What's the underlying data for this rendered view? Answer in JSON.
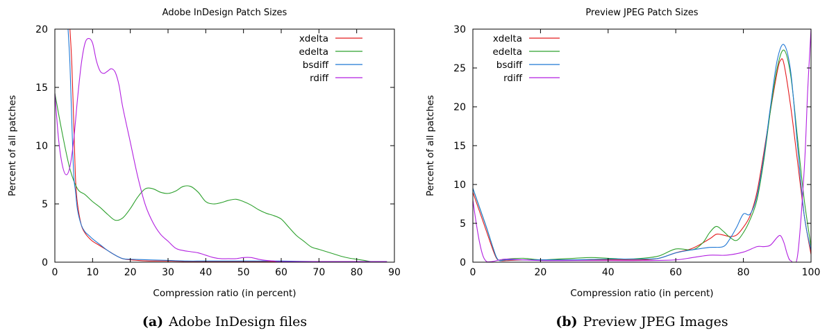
{
  "chart_data": [
    {
      "type": "line",
      "title": "Adobe InDesign Patch Sizes",
      "xlabel": "Compression ratio (in percent)",
      "ylabel": "Percent of all patches",
      "xlim": [
        0,
        90
      ],
      "ylim": [
        0,
        20
      ],
      "xticks": [
        0,
        10,
        20,
        30,
        40,
        50,
        60,
        70,
        80,
        90
      ],
      "yticks": [
        0,
        5,
        10,
        15,
        20
      ],
      "grid": false,
      "legend_position": "top-right",
      "caption_label": "(a)",
      "caption_text": "Adobe InDesign files",
      "series": [
        {
          "name": "xdelta",
          "color": "#e41a1c",
          "x": [
            4,
            4.5,
            5,
            5.5,
            6,
            7,
            8,
            9,
            10,
            12,
            14,
            16,
            18,
            20,
            22,
            25,
            30,
            35,
            40,
            50,
            60,
            70,
            80,
            88
          ],
          "y": [
            20,
            17,
            12,
            7,
            5,
            3.2,
            2.5,
            2.1,
            1.8,
            1.4,
            1.0,
            0.6,
            0.3,
            0.2,
            0.15,
            0.1,
            0.1,
            0.05,
            0.05,
            0.05,
            0.05,
            0.05,
            0.05,
            0.05
          ]
        },
        {
          "name": "edelta",
          "color": "#2ca02c",
          "x": [
            0,
            2,
            4,
            6,
            8,
            10,
            12,
            14,
            16,
            18,
            20,
            22,
            24,
            26,
            28,
            30,
            32,
            34,
            36,
            38,
            40,
            42,
            44,
            46,
            48,
            50,
            52,
            54,
            56,
            58,
            60,
            62,
            64,
            66,
            68,
            70,
            72,
            74,
            76,
            78,
            80,
            82,
            84,
            86,
            88
          ],
          "y": [
            14.5,
            11.0,
            8.0,
            6.3,
            5.8,
            5.2,
            4.7,
            4.1,
            3.6,
            3.8,
            4.6,
            5.6,
            6.3,
            6.3,
            6.0,
            5.9,
            6.1,
            6.5,
            6.5,
            6.0,
            5.2,
            5.0,
            5.1,
            5.3,
            5.4,
            5.2,
            4.9,
            4.5,
            4.2,
            4.0,
            3.7,
            3.0,
            2.3,
            1.8,
            1.3,
            1.1,
            0.9,
            0.7,
            0.5,
            0.35,
            0.25,
            0.15,
            0.05,
            0.05,
            0.05
          ]
        },
        {
          "name": "bsdiff",
          "color": "#1f77d4",
          "x": [
            3.5,
            4,
            4.5,
            5,
            5.5,
            6,
            7,
            8,
            9,
            10,
            12,
            14,
            16,
            18,
            20,
            25,
            30,
            35,
            40,
            50,
            60,
            70,
            80,
            88
          ],
          "y": [
            20,
            17,
            12,
            7.5,
            6.0,
            4.5,
            3.2,
            2.6,
            2.3,
            2.0,
            1.5,
            1.0,
            0.6,
            0.3,
            0.25,
            0.2,
            0.15,
            0.1,
            0.1,
            0.1,
            0.1,
            0.05,
            0.05,
            0.05
          ]
        },
        {
          "name": "rdiff",
          "color": "#b21fe0",
          "x": [
            0,
            1,
            2,
            3,
            4,
            5,
            6,
            7,
            8,
            9,
            10,
            11,
            12,
            13,
            14,
            15,
            16,
            17,
            18,
            20,
            22,
            24,
            26,
            28,
            30,
            32,
            34,
            36,
            38,
            40,
            42,
            44,
            46,
            48,
            50,
            52,
            54,
            56,
            58,
            60,
            70,
            80,
            88
          ],
          "y": [
            14.5,
            10.5,
            8.3,
            7.5,
            8.2,
            10.5,
            14.0,
            17.0,
            18.8,
            19.2,
            18.8,
            17.3,
            16.4,
            16.2,
            16.4,
            16.6,
            16.3,
            15.2,
            13.3,
            10.3,
            7.3,
            4.9,
            3.4,
            2.4,
            1.8,
            1.2,
            1.0,
            0.9,
            0.8,
            0.6,
            0.4,
            0.3,
            0.3,
            0.3,
            0.4,
            0.4,
            0.25,
            0.15,
            0.1,
            0.05,
            0.05,
            0.05,
            0.05
          ]
        }
      ]
    },
    {
      "type": "line",
      "title": "Preview JPEG Patch Sizes",
      "xlabel": "Compression ratio (in percent)",
      "ylabel": "Percent of all patches",
      "xlim": [
        0,
        100
      ],
      "ylim": [
        0,
        30
      ],
      "xticks": [
        0,
        20,
        40,
        60,
        80,
        100
      ],
      "yticks": [
        0,
        5,
        10,
        15,
        20,
        25,
        30
      ],
      "grid": false,
      "legend_position": "top-left",
      "caption_label": "(b)",
      "caption_text": "Preview JPEG Images",
      "series": [
        {
          "name": "xdelta",
          "color": "#e41a1c",
          "x": [
            0,
            2,
            4,
            6,
            7,
            8,
            10,
            15,
            20,
            30,
            40,
            50,
            55,
            60,
            65,
            70,
            72,
            74,
            76,
            78,
            80,
            82,
            84,
            86,
            88,
            90,
            91,
            92,
            94,
            96,
            98,
            100
          ],
          "y": [
            9.0,
            6.5,
            4.0,
            1.5,
            0.5,
            0.2,
            0.2,
            0.3,
            0.3,
            0.3,
            0.3,
            0.3,
            0.5,
            1.2,
            1.8,
            3.0,
            3.6,
            3.5,
            3.3,
            3.5,
            4.5,
            6.0,
            9.0,
            14.0,
            19.5,
            24.5,
            26.0,
            25.5,
            20.0,
            13.0,
            6.0,
            1.0
          ]
        },
        {
          "name": "edelta",
          "color": "#2ca02c",
          "x": [
            0,
            2,
            4,
            6,
            7,
            8,
            10,
            15,
            20,
            25,
            30,
            35,
            40,
            45,
            50,
            55,
            60,
            65,
            68,
            70,
            72,
            74,
            76,
            78,
            80,
            82,
            84,
            86,
            88,
            90,
            92,
            94,
            96,
            98,
            100
          ],
          "y": [
            9.5,
            7.0,
            4.5,
            1.8,
            0.6,
            0.2,
            0.4,
            0.5,
            0.3,
            0.4,
            0.5,
            0.6,
            0.5,
            0.4,
            0.5,
            0.8,
            1.7,
            1.6,
            2.5,
            3.8,
            4.6,
            4.0,
            3.2,
            2.8,
            3.8,
            5.5,
            8.0,
            13.0,
            19.5,
            25.0,
            27.3,
            24.0,
            16.0,
            8.0,
            2.0
          ]
        },
        {
          "name": "bsdiff",
          "color": "#1f77d4",
          "x": [
            0,
            2,
            4,
            6,
            7,
            8,
            10,
            15,
            20,
            30,
            40,
            50,
            55,
            60,
            65,
            70,
            74,
            76,
            78,
            80,
            82,
            84,
            86,
            88,
            90,
            92,
            94,
            96,
            98,
            100
          ],
          "y": [
            9.5,
            7.0,
            4.5,
            1.8,
            0.6,
            0.2,
            0.3,
            0.3,
            0.3,
            0.3,
            0.4,
            0.4,
            0.5,
            1.2,
            1.6,
            1.9,
            2.0,
            3.0,
            4.5,
            6.2,
            6.2,
            8.5,
            13.5,
            20.0,
            26.0,
            28.0,
            24.5,
            15.0,
            6.0,
            1.5
          ]
        },
        {
          "name": "rdiff",
          "color": "#b21fe0",
          "x": [
            0,
            1,
            2,
            3,
            4,
            5,
            6,
            8,
            10,
            15,
            20,
            30,
            40,
            50,
            60,
            65,
            70,
            75,
            80,
            84,
            86,
            88,
            90,
            91,
            92,
            93,
            94,
            96,
            98,
            99,
            100
          ],
          "y": [
            8.0,
            5.0,
            2.5,
            0.8,
            0.1,
            0.05,
            0.1,
            0.3,
            0.4,
            0.3,
            0.2,
            0.2,
            0.2,
            0.2,
            0.3,
            0.6,
            0.9,
            0.9,
            1.3,
            2.0,
            2.0,
            2.2,
            3.2,
            3.4,
            2.5,
            1.0,
            0.2,
            0.8,
            12.0,
            22.0,
            30.0
          ]
        }
      ]
    }
  ]
}
